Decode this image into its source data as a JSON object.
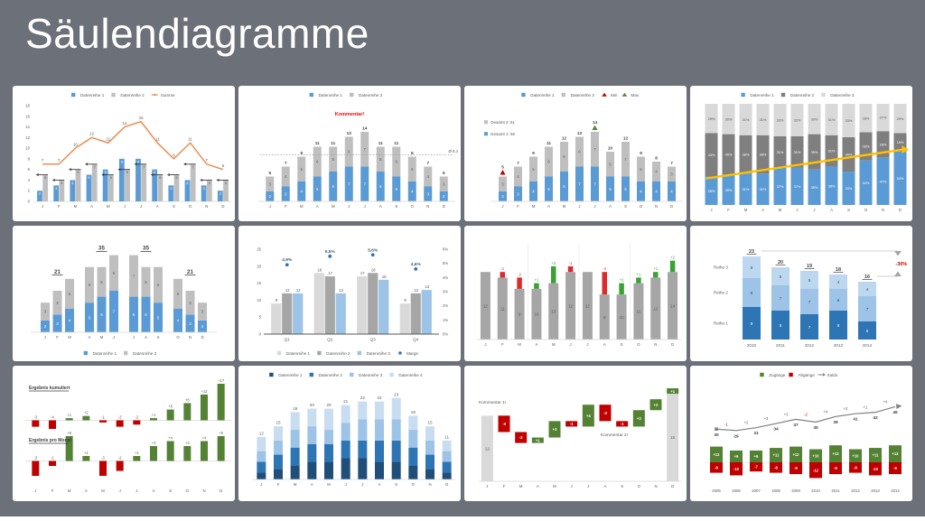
{
  "page": {
    "title": "Säulendiagramme"
  },
  "colors": {
    "background": "#6c7078",
    "card": "#ffffff",
    "text": "#595959",
    "text_dark": "#404040",
    "blue": "#5b9bd5",
    "gray_bar": "#bfbfbf",
    "orange": "#ed8c4f",
    "yellow": "#ffc000",
    "red": "#c00000",
    "green": "#548235"
  },
  "chart_data": [
    {
      "id": "clustered-with-sum-line",
      "type": "clustered-line",
      "legend": [
        {
          "label": "Datenreihe 1",
          "color": "#5b9bd5",
          "glyph": "rect"
        },
        {
          "label": "Datenreihe 2",
          "color": "#bfbfbf",
          "glyph": "rect"
        },
        {
          "label": "Summe",
          "color": "#ed8c4f",
          "glyph": "line"
        }
      ],
      "categories": [
        "J",
        "F",
        "M",
        "A",
        "M",
        "J",
        "J",
        "A",
        "S",
        "O",
        "N",
        "D"
      ],
      "series": [
        {
          "name": "Datenreihe 1",
          "color": "#5b9bd5",
          "values": [
            2,
            3,
            4,
            5,
            6,
            8,
            8,
            6,
            3,
            4,
            3,
            2
          ]
        },
        {
          "name": "Datenreihe 2",
          "color": "#bfbfbf",
          "values": [
            5,
            4,
            6,
            7,
            5,
            6,
            7,
            5,
            5,
            7,
            4,
            4
          ]
        }
      ],
      "line": {
        "name": "Summe",
        "color": "#ed8c4f",
        "values": [
          7,
          7,
          10,
          12,
          11,
          14,
          15,
          11,
          8,
          11,
          7,
          6
        ]
      },
      "ylim": [
        0,
        18
      ],
      "yticks": [
        0,
        2,
        4,
        6,
        8,
        10,
        12,
        14,
        16,
        18
      ]
    },
    {
      "id": "stacked-with-average",
      "type": "stacked-average",
      "legend": [
        {
          "label": "Datenreihe 1",
          "color": "#5b9bd5",
          "glyph": "rect"
        },
        {
          "label": "Datenreihe 2",
          "color": "#bfbfbf",
          "glyph": "rect"
        }
      ],
      "annotation": {
        "text": "Kommentar!",
        "color": "#ff0000"
      },
      "categories": [
        "J",
        "F",
        "M",
        "A",
        "M",
        "J",
        "J",
        "A",
        "S",
        "O",
        "N",
        "D"
      ],
      "series": [
        {
          "name": "Datenreihe 1",
          "color": "#5b9bd5",
          "values": [
            2,
            3,
            4,
            5,
            6,
            7,
            7,
            6,
            5,
            4,
            3,
            2
          ]
        },
        {
          "name": "Datenreihe 2",
          "color": "#bfbfbf",
          "values": [
            3,
            4,
            5,
            6,
            5,
            6,
            7,
            5,
            6,
            5,
            4,
            3
          ]
        }
      ],
      "totals": [
        5,
        7,
        9,
        11,
        11,
        13,
        14,
        11,
        11,
        9,
        7,
        5
      ],
      "average": {
        "value": 9.4,
        "label": "Ø 9,4"
      },
      "ylim": [
        0,
        16
      ]
    },
    {
      "id": "stacked-min-max",
      "type": "stacked-minmax",
      "legend": [
        {
          "label": "Datenreihe 1",
          "color": "#5b9bd5",
          "glyph": "rect"
        },
        {
          "label": "Datenreihe 2",
          "color": "#bfbfbf",
          "glyph": "rect"
        },
        {
          "label": "Min",
          "color": "#c00000",
          "glyph": "tri"
        },
        {
          "label": "Max",
          "color": "#548235",
          "glyph": "tri"
        }
      ],
      "side_labels": [
        {
          "text": "Gesamt 2: 61",
          "color": "#bfbfbf"
        },
        {
          "text": "Gesamt 1: 56",
          "color": "#5b9bd5"
        }
      ],
      "categories": [
        "J",
        "F",
        "M",
        "A",
        "M",
        "J",
        "J",
        "A",
        "S",
        "O",
        "N",
        "D"
      ],
      "series": [
        {
          "name": "Datenreihe 1",
          "color": "#5b9bd5",
          "values": [
            2,
            3,
            4,
            5,
            6,
            7,
            7,
            5,
            5,
            4,
            4,
            4
          ]
        },
        {
          "name": "Datenreihe 2",
          "color": "#bfbfbf",
          "values": [
            3,
            4,
            5,
            6,
            6,
            6,
            7,
            5,
            7,
            5,
            4,
            3
          ]
        }
      ],
      "totals": [
        5,
        7,
        9,
        11,
        12,
        13,
        14,
        10,
        12,
        9,
        8,
        7
      ],
      "min_index": 0,
      "max_index": 6,
      "min_color": "#c00000",
      "max_color": "#548235",
      "ylim": [
        0,
        16
      ]
    },
    {
      "id": "percent-stacked-trend",
      "type": "percent-stacked",
      "legend": [
        {
          "label": "Datenreihe 1",
          "color": "#5b9bd5",
          "glyph": "rect"
        },
        {
          "label": "Datenreihe 2",
          "color": "#7f7f7f",
          "glyph": "rect"
        },
        {
          "label": "Datenreihe 3",
          "color": "#d9d9d9",
          "glyph": "rect"
        }
      ],
      "categories": [
        "J",
        "F",
        "M",
        "A",
        "M",
        "J",
        "J",
        "A",
        "S",
        "O",
        "N",
        "D"
      ],
      "series": [
        {
          "name": "Datenreihe 1",
          "color": "#5b9bd5",
          "label_color": "#ffffff",
          "values": [
            28,
            30,
            31,
            31,
            37,
            37,
            35,
            38,
            33,
            44,
            47,
            53
          ]
        },
        {
          "name": "Datenreihe 2",
          "color": "#7f7f7f",
          "label_color": "#ffffff",
          "values": [
            43,
            40,
            38,
            38,
            31,
            31,
            35,
            31,
            34,
            28,
            26,
            18
          ]
        },
        {
          "name": "Datenreihe 3",
          "color": "#d9d9d9",
          "label_color": "#595959",
          "values": [
            29,
            30,
            31,
            31,
            32,
            32,
            30,
            31,
            33,
            28,
            27,
            29
          ]
        }
      ],
      "arrow_color": "#ffc000"
    },
    {
      "id": "stacked-quarter-groups",
      "type": "stacked-grouped",
      "legend": [
        {
          "label": "Datenreihe 1",
          "color": "#5b9bd5",
          "glyph": "rect"
        },
        {
          "label": "Datenreihe 2",
          "color": "#bfbfbf",
          "glyph": "rect"
        }
      ],
      "categories": [
        "J",
        "F",
        "M",
        "A",
        "M",
        "J",
        "J",
        "A",
        "S",
        "O",
        "N",
        "D"
      ],
      "series": [
        {
          "name": "Datenreihe 1",
          "color": "#5b9bd5",
          "values": [
            2,
            3,
            4,
            5,
            6,
            7,
            6,
            6,
            5,
            4,
            3,
            2
          ]
        },
        {
          "name": "Datenreihe 2",
          "color": "#bfbfbf",
          "values": [
            3,
            4,
            5,
            6,
            5,
            6,
            7,
            5,
            6,
            5,
            4,
            3
          ]
        }
      ],
      "group_totals": [
        21,
        35,
        35,
        21
      ],
      "ylim": [
        0,
        14
      ]
    },
    {
      "id": "clustered-margin",
      "type": "clustered-points",
      "legend": [
        {
          "label": "Datenreihe 1",
          "color": "#d9d9d9",
          "glyph": "rect"
        },
        {
          "label": "Datenreihe 2",
          "color": "#a6a6a6",
          "glyph": "rect"
        },
        {
          "label": "Datenreihe 3",
          "color": "#9dc3e6",
          "glyph": "rect"
        },
        {
          "label": "Marge",
          "color": "#2e75b6",
          "glyph": "dot"
        }
      ],
      "categories": [
        "Q1",
        "Q2",
        "Q3",
        "Q4"
      ],
      "series": [
        {
          "name": "Datenreihe 1",
          "color": "#d9d9d9",
          "values": [
            9,
            18,
            17,
            9
          ]
        },
        {
          "name": "Datenreihe 2",
          "color": "#a6a6a6",
          "values": [
            12,
            17,
            18,
            12
          ]
        },
        {
          "name": "Datenreihe 3",
          "color": "#9dc3e6",
          "values": [
            12,
            12,
            16,
            13
          ]
        }
      ],
      "points": {
        "name": "Marge",
        "color": "#2e75b6",
        "label_color": "#44546a",
        "values": [
          4.9,
          5.5,
          5.6,
          4.6
        ],
        "labels": [
          "4,9%",
          "5,5%",
          "5,6%",
          "4,6%"
        ]
      },
      "ylim": [
        0,
        25
      ],
      "yticks": [
        0,
        5,
        10,
        15,
        20,
        25
      ],
      "y2lim": [
        0,
        6
      ],
      "y2ticks": [
        "0%",
        "1%",
        "2%",
        "3%",
        "4%",
        "5%",
        "6%"
      ]
    },
    {
      "id": "variance-to-previous",
      "type": "variance",
      "categories": [
        "J",
        "F",
        "M",
        "A",
        "M",
        "J",
        "J",
        "A",
        "S",
        "O",
        "N",
        "D"
      ],
      "values": [
        12,
        11,
        9,
        10,
        13,
        12,
        12,
        8,
        10,
        11,
        12,
        14
      ],
      "deltas": [
        null,
        -1,
        -2,
        1,
        3,
        -1,
        null,
        -4,
        2,
        1,
        1,
        2
      ],
      "delta_labels": [
        "",
        "-1",
        "-2",
        "+1",
        "+3",
        "-1",
        "",
        "-4",
        "+2",
        "+1",
        "+1",
        "+2"
      ],
      "bar_color": "#a6a6a6",
      "up_color": "#3aa135",
      "down_color": "#dd2b2b",
      "ylim": [
        0,
        17
      ]
    },
    {
      "id": "stacked-years-decline",
      "type": "stacked-years",
      "categories": [
        "2010",
        "2011",
        "2012",
        "2013",
        "2014"
      ],
      "series": [
        {
          "name": "Reihe 1",
          "color": "#2e75b6",
          "label_color": "#ffffff",
          "values": [
            9,
            8,
            7,
            8,
            5
          ]
        },
        {
          "name": "Reihe 2",
          "color": "#9dc3e6",
          "label_color": "#1f4e79",
          "values": [
            8,
            7,
            7,
            6,
            7
          ]
        },
        {
          "name": "Reihe 3",
          "color": "#bdd7ee",
          "label_color": "#1f4e79",
          "values": [
            6,
            5,
            5,
            4,
            4
          ]
        }
      ],
      "totals": [
        23,
        20,
        19,
        18,
        16
      ],
      "row_labels": [
        "Reihe 3",
        "Reihe 2",
        "Reihe 1"
      ],
      "change_label": "-30%",
      "change_color": "#c00000",
      "ylim": [
        0,
        26
      ]
    },
    {
      "id": "result-cumulated-monthly",
      "type": "dual-panels",
      "categories": [
        "J",
        "F",
        "M",
        "A",
        "M",
        "J",
        "J",
        "A",
        "S",
        "O",
        "N",
        "D"
      ],
      "pos_color": "#548235",
      "neg_color": "#c00000",
      "panels": [
        {
          "title": "Ergebnis kumuliert",
          "values": [
            -3,
            -4,
            1,
            2,
            -1,
            -3,
            -2,
            1,
            5,
            8,
            12,
            17
          ],
          "labels": [
            "-3",
            "-4",
            "+1",
            "+2",
            "-1",
            "-3",
            "-2",
            "+1",
            "+5",
            "+8",
            "+12",
            "+17"
          ]
        },
        {
          "title": "Ergebnis pro Monat",
          "values": [
            -3,
            -1,
            5,
            1,
            -3,
            -2,
            1,
            3,
            4,
            3,
            4,
            5
          ],
          "labels": [
            "-3",
            "-1",
            "+5",
            "+1",
            "-3",
            "-2",
            "+1",
            "+3",
            "+4",
            "+3",
            "+4",
            "+5"
          ]
        }
      ]
    },
    {
      "id": "stacked-four-series",
      "type": "stacked-four",
      "legend": [
        {
          "label": "Datenreihe 1",
          "color": "#1f4e79",
          "glyph": "rect"
        },
        {
          "label": "Datenreihe 2",
          "color": "#2e75b6",
          "glyph": "rect"
        },
        {
          "label": "Datenreihe 3",
          "color": "#9dc3e6",
          "glyph": "rect"
        },
        {
          "label": "Datenreihe 4",
          "color": "#c9ddf1",
          "glyph": "rect"
        }
      ],
      "categories": [
        "J",
        "F",
        "M",
        "A",
        "M",
        "J",
        "J",
        "A",
        "S",
        "O",
        "N",
        "D"
      ],
      "series": [
        {
          "name": "Datenreihe 1",
          "color": "#1f4e79",
          "values": [
            2,
            3,
            4,
            5,
            5,
            6,
            6,
            5,
            5,
            4,
            3,
            2
          ]
        },
        {
          "name": "Datenreihe 2",
          "color": "#2e75b6",
          "values": [
            3,
            4,
            5,
            5,
            5,
            5,
            5,
            6,
            6,
            5,
            4,
            3
          ]
        },
        {
          "name": "Datenreihe 3",
          "color": "#9dc3e6",
          "values": [
            3,
            4,
            5,
            5,
            4,
            5,
            6,
            6,
            6,
            5,
            4,
            3
          ]
        },
        {
          "name": "Datenreihe 4",
          "color": "#c9ddf1",
          "values": [
            4,
            4,
            5,
            5,
            6,
            5,
            5,
            5,
            6,
            4,
            4,
            3
          ]
        }
      ],
      "totals": [
        12,
        15,
        19,
        20,
        20,
        21,
        22,
        22,
        23,
        18,
        15,
        11
      ],
      "ylim": [
        0,
        26
      ]
    },
    {
      "id": "waterfall-comments",
      "type": "waterfall",
      "categories": [
        "J",
        "F",
        "M",
        "A",
        "M",
        "J",
        "J",
        "A",
        "S",
        "O",
        "N",
        "D"
      ],
      "start_value": 12,
      "end_value": 16,
      "changes": [
        null,
        -3,
        -2,
        1,
        3,
        -1,
        4,
        -3,
        -1,
        3,
        2,
        1
      ],
      "labels": [
        "12",
        "-3",
        "-2",
        "+1",
        "+3",
        "-1",
        "+4",
        "-3",
        "-1",
        "+3",
        "+2",
        "+1"
      ],
      "end_label": "16",
      "pos_color": "#548235",
      "neg_color": "#c00000",
      "total_color": "#d9d9d9",
      "annotations": [
        {
          "text": "Kommentar 1!"
        },
        {
          "text": "Kommentar 2!"
        }
      ],
      "ylim": [
        0,
        17.5
      ]
    },
    {
      "id": "gains-losses-saldo",
      "type": "gainloss",
      "legend": [
        {
          "label": "Zugänge",
          "color": "#548235",
          "glyph": "rect"
        },
        {
          "label": "Abgänge",
          "color": "#c00000",
          "glyph": "rect"
        },
        {
          "label": "Saldo",
          "color": "#808080",
          "glyph": "arrow"
        }
      ],
      "categories": [
        "2005",
        "2006",
        "2007",
        "2008",
        "2009",
        "2010",
        "2011",
        "2012",
        "2013",
        "2014"
      ],
      "gains": {
        "name": "Zugänge",
        "color": "#548235",
        "values": [
          12,
          9,
          9,
          11,
          12,
          10,
          13,
          10,
          11,
          13
        ],
        "labels": [
          "+12",
          "+9",
          "+9",
          "+11",
          "+12",
          "+10",
          "+13",
          "+10",
          "+11",
          "+13"
        ]
      },
      "losses": {
        "name": "Abgänge",
        "color": "#c00000",
        "values": [
          -8,
          -10,
          -7,
          -8,
          -9,
          -12,
          -9,
          -8,
          -10,
          -9
        ],
        "labels": [
          "-8",
          "-10",
          "-7",
          "-8",
          "-9",
          "-12",
          "-9",
          "-8",
          "-10",
          "-9"
        ]
      },
      "saldo": {
        "name": "Saldo",
        "color": "#808080",
        "values": [
          30,
          29,
          31,
          34,
          37,
          35,
          39,
          41,
          42,
          46
        ],
        "delta_labels": [
          "",
          "-1",
          "+2",
          "+3",
          "+3",
          "-2",
          "+4",
          "+2",
          "+1",
          "+4"
        ]
      }
    }
  ]
}
